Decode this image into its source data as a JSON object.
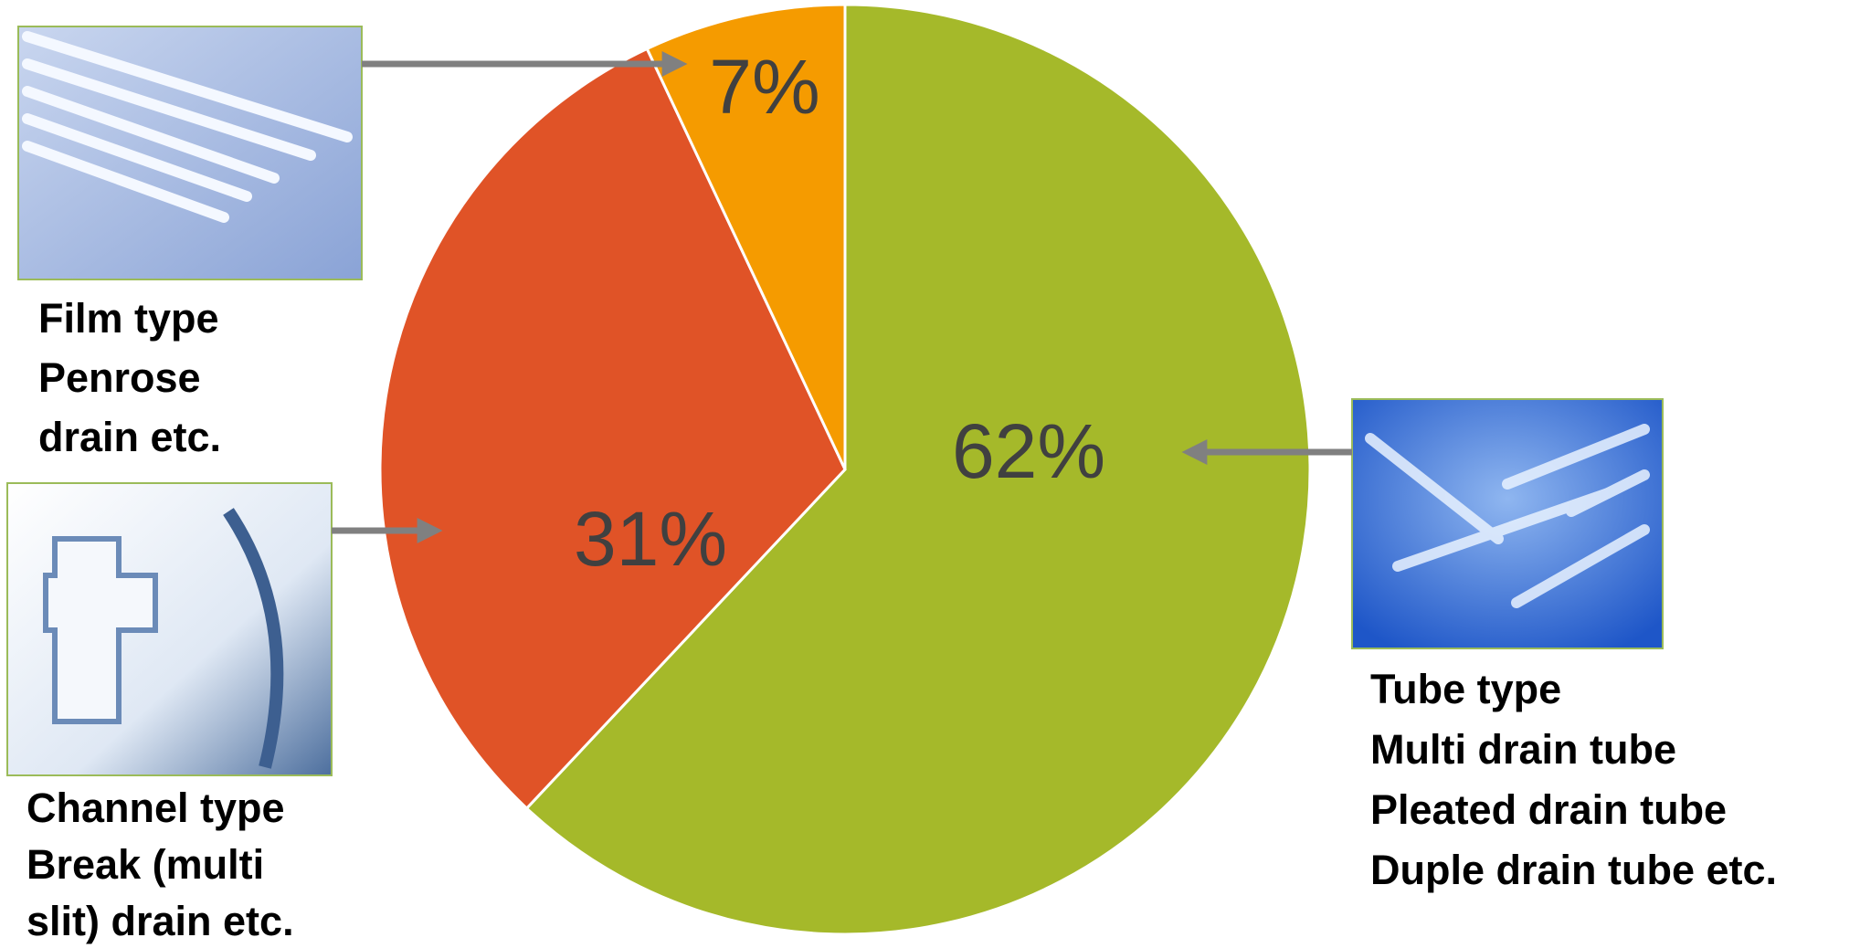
{
  "chart_data": {
    "type": "pie",
    "values": [
      62,
      31,
      7
    ],
    "value_labels": [
      "62%",
      "31%",
      "7%"
    ],
    "colors": [
      "#a5b92a",
      "#e05327",
      "#f59b00"
    ],
    "annotations": [
      {
        "lines": [
          "Tube type",
          "Multi drain tube",
          "Pleated drain tube",
          "Duple drain tube etc."
        ]
      },
      {
        "lines": [
          "Channel type",
          "Break (multi",
          "slit) drain etc."
        ]
      },
      {
        "lines": [
          "Film type",
          "Penrose",
          "drain etc."
        ]
      }
    ]
  }
}
